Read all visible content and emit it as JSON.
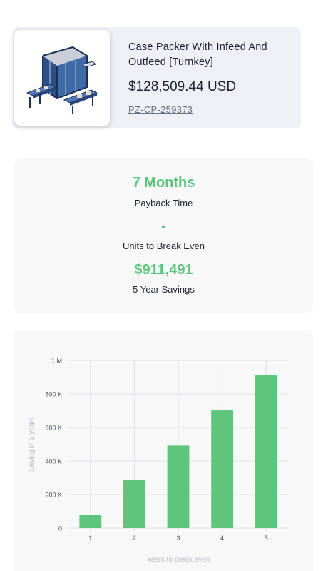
{
  "product": {
    "title": "Case Packer With Infeed And Outfeed [Turnkey]",
    "price": "$128,509.44 USD",
    "sku": "PZ-CP-259373",
    "image_icon": "machine-render-icon"
  },
  "stats": {
    "payback_value": "7 Months",
    "payback_label": "Payback Time",
    "units_value": "-",
    "units_label": "Units to Break Even",
    "savings_value": "$911,491",
    "savings_label": "5 Year Savings"
  },
  "colors": {
    "accent": "#5dc57c",
    "card_bg": "#eef0f6"
  },
  "chart_data": {
    "type": "bar",
    "categories": [
      "1",
      "2",
      "3",
      "4",
      "5"
    ],
    "values": [
      80000,
      286000,
      492000,
      702000,
      911491
    ],
    "xlabel": "Years to break even",
    "ylabel": "Saving in 5 years",
    "ylim": [
      0,
      1000000
    ],
    "yticks": [
      0,
      200000,
      400000,
      600000,
      800000,
      1000000
    ],
    "ytick_labels": [
      "0",
      "200 K",
      "400 K",
      "600 K",
      "800 K",
      "1 M"
    ],
    "grid": true,
    "bar_color": "#5dc57c"
  }
}
